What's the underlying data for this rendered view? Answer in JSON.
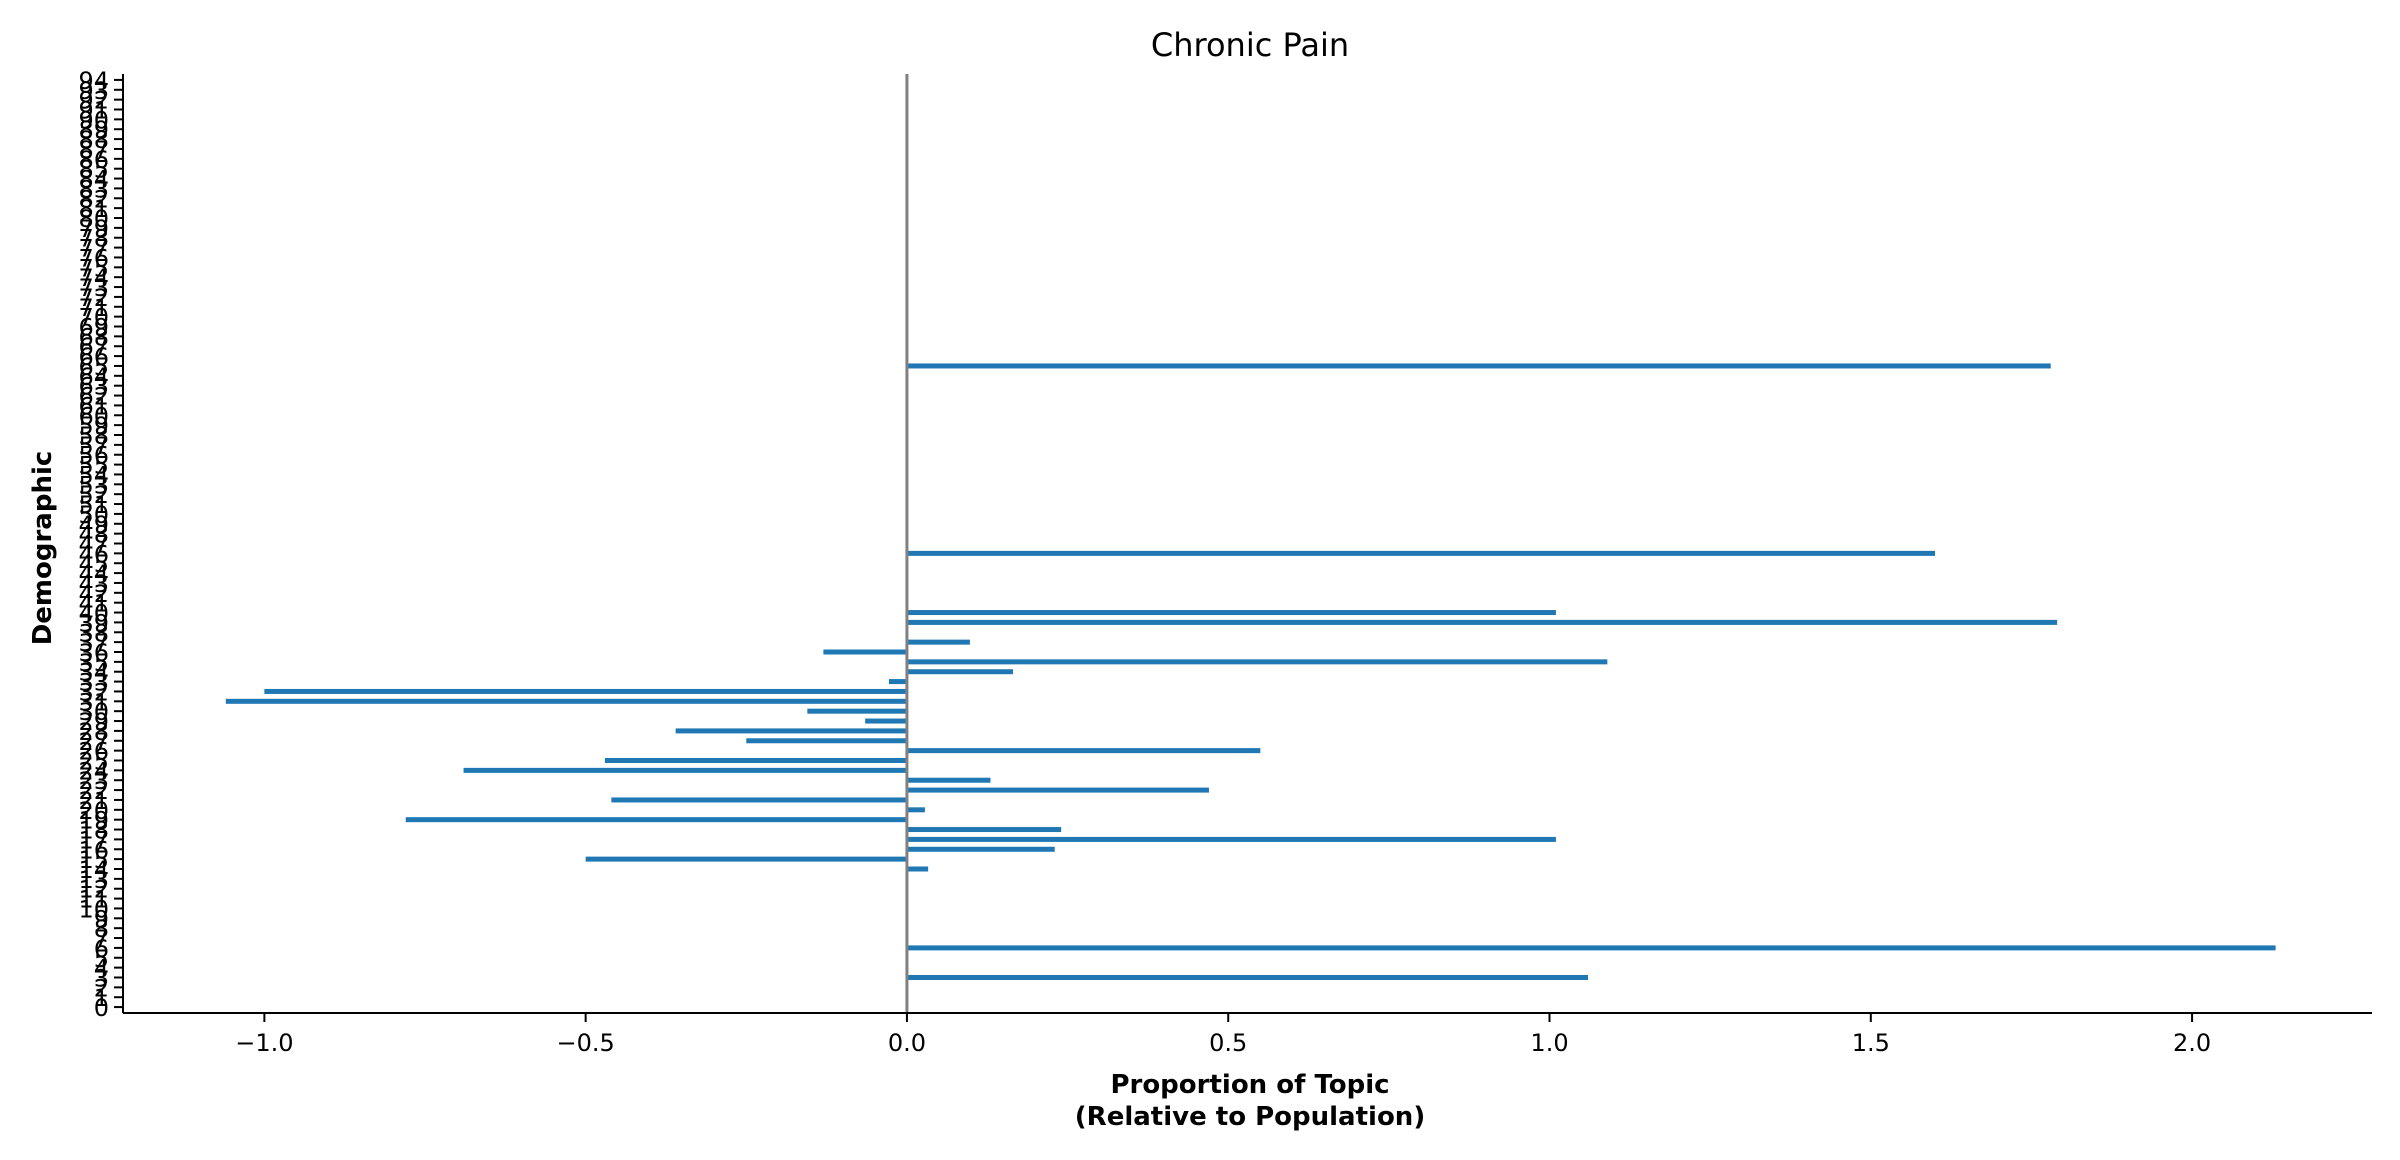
{
  "chart_data": {
    "type": "bar",
    "orientation": "horizontal",
    "title": "Chronic Pain",
    "xlabel_lines": [
      "Proportion of Topic",
      "(Relative to Population)"
    ],
    "ylabel": "Demographic",
    "xlim": [
      -1.22,
      2.28
    ],
    "ylim": [
      -0.6,
      94.6
    ],
    "xticks": [
      -1.0,
      -0.5,
      0.0,
      0.5,
      1.0,
      1.5,
      2.0
    ],
    "xtick_labels": [
      "−1.0",
      "−0.5",
      "0.0",
      "0.5",
      "1.0",
      "1.5",
      "2.0"
    ],
    "yticks": [
      0,
      1,
      2,
      3,
      4,
      5,
      6,
      7,
      8,
      9,
      10,
      11,
      12,
      13,
      14,
      15,
      16,
      17,
      18,
      19,
      20,
      21,
      22,
      23,
      24,
      25,
      26,
      27,
      28,
      29,
      30,
      31,
      32,
      33,
      34,
      35,
      36,
      37,
      38,
      39,
      40,
      41,
      42,
      43,
      44,
      45,
      46,
      47,
      48,
      49,
      50,
      51,
      52,
      53,
      54,
      55,
      56,
      57,
      58,
      59,
      60,
      61,
      62,
      63,
      64,
      65,
      66,
      67,
      68,
      69,
      70,
      71,
      72,
      73,
      74,
      75,
      76,
      77,
      78,
      79,
      80,
      81,
      82,
      83,
      84,
      85,
      86,
      87,
      88,
      89,
      90,
      91,
      92,
      93,
      94
    ],
    "zero_line": true,
    "grid": false,
    "bar_color": "#1f77b4",
    "zero_line_color": "#808080",
    "bars": [
      {
        "y": 3,
        "value": 1.06
      },
      {
        "y": 6,
        "value": 2.13
      },
      {
        "y": 14,
        "value": 0.033
      },
      {
        "y": 15,
        "value": -0.5
      },
      {
        "y": 16,
        "value": 0.23
      },
      {
        "y": 17,
        "value": 1.01
      },
      {
        "y": 18,
        "value": 0.24
      },
      {
        "y": 19,
        "value": -0.78
      },
      {
        "y": 20,
        "value": 0.028
      },
      {
        "y": 21,
        "value": -0.46
      },
      {
        "y": 22,
        "value": 0.47
      },
      {
        "y": 23,
        "value": 0.13
      },
      {
        "y": 24,
        "value": -0.69
      },
      {
        "y": 25,
        "value": -0.47
      },
      {
        "y": 26,
        "value": 0.55
      },
      {
        "y": 27,
        "value": -0.25
      },
      {
        "y": 28,
        "value": -0.36
      },
      {
        "y": 29,
        "value": -0.065
      },
      {
        "y": 30,
        "value": -0.155
      },
      {
        "y": 31,
        "value": -1.06
      },
      {
        "y": 32,
        "value": -1.0
      },
      {
        "y": 33,
        "value": -0.028
      },
      {
        "y": 34,
        "value": 0.165
      },
      {
        "y": 35,
        "value": 1.09
      },
      {
        "y": 36,
        "value": -0.13
      },
      {
        "y": 37,
        "value": 0.098
      },
      {
        "y": 39,
        "value": 1.79
      },
      {
        "y": 40,
        "value": 1.01
      },
      {
        "y": 46,
        "value": 1.6
      },
      {
        "y": 65,
        "value": 1.78
      }
    ]
  }
}
